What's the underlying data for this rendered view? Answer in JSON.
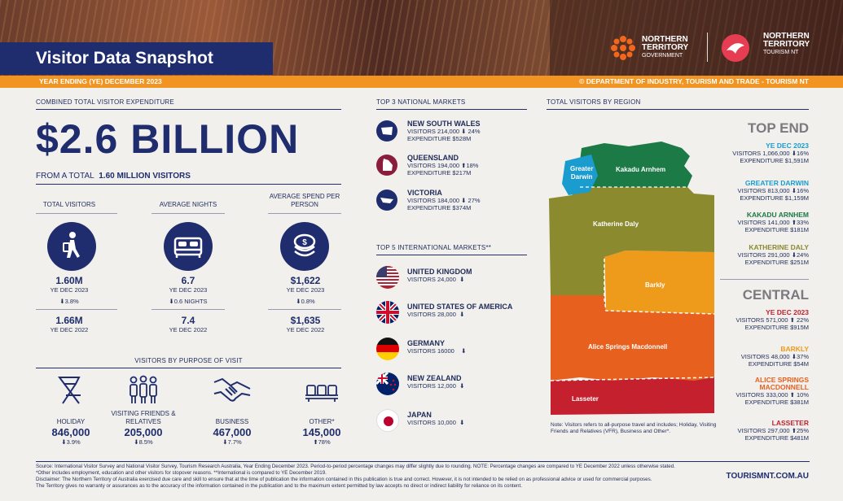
{
  "header": {
    "title": "Visitor Data Snapshot",
    "period": "YEAR ENDING (YE) DECEMBER  2023",
    "copyright": "© DEPARTMENT OF INDUSTRY, TOURISM AND TRADE - TOURISM NT",
    "logo_gov_line1": "NORTHERN",
    "logo_gov_line2": "TERRITORY",
    "logo_gov_line3": "GOVERNMENT",
    "logo_tourism_line1": "NORTHERN",
    "logo_tourism_line2": "TERRITORY",
    "logo_tourism_line3": "TOURISM NT"
  },
  "expenditure": {
    "heading": "COMBINED TOTAL VISITOR EXPENDITURE",
    "amount": "$2.6 BILLION",
    "from_prefix": "FROM A TOTAL",
    "from_value": "1.60 MILLION VISITORS"
  },
  "stats": [
    {
      "label": "TOTAL VISITORS",
      "value_2023": "1.60M",
      "period_2023": "YE DEC 2023",
      "change": "⬇3.8%",
      "value_2022": "1.66M",
      "period_2022": "YE DEC 2022"
    },
    {
      "label": "AVERAGE NIGHTS",
      "value_2023": "6.7",
      "period_2023": "YE DEC 2023",
      "change": "⬇0.6 NIGHTS",
      "value_2022": "7.4",
      "period_2022": "YE DEC 2022"
    },
    {
      "label": "AVERAGE SPEND PER PERSON",
      "value_2023": "$1,622",
      "period_2023": "YE DEC 2023",
      "change": "⬇0.8%",
      "value_2022": "$1,635",
      "period_2022": "YE DEC 2022"
    }
  ],
  "purpose": {
    "heading": "VISITORS BY PURPOSE OF VISIT",
    "items": [
      {
        "label": "HOLIDAY",
        "value": "846,000",
        "change": "⬇3.9%",
        "icon": "deckchair-icon"
      },
      {
        "label": "VISITING FRIENDS & RELATIVES",
        "value": "205,000",
        "change": "⬇8.5%",
        "icon": "family-icon"
      },
      {
        "label": "BUSINESS",
        "value": "467,000",
        "change": "⬇7.7%",
        "icon": "handshake-icon"
      },
      {
        "label": "OTHER*",
        "value": "145,000",
        "change": "⬆78%",
        "icon": "seats-icon"
      }
    ]
  },
  "national": {
    "heading": "TOP 3 NATIONAL MARKETS",
    "items": [
      {
        "name": "NEW SOUTH WALES",
        "visitors": "VISITORS  214,000",
        "change": "⬇ 24%",
        "expenditure": "EXPENDITURE $528M"
      },
      {
        "name": "QUEENSLAND",
        "visitors": "VISITORS 194,000",
        "change": "⬆18%",
        "expenditure": "EXPENDITURE $217M"
      },
      {
        "name": "VICTORIA",
        "visitors": "VISITORS 184,000",
        "change": "⬇ 27%",
        "expenditure": "EXPENDITURE $374M"
      }
    ]
  },
  "international": {
    "heading": "TOP 5 INTERNATIONAL MARKETS**",
    "items": [
      {
        "name": "UNITED KINGDOM",
        "visitors": "VISITORS 24,000",
        "change": "⬇"
      },
      {
        "name": "UNITED STATES OF AMERICA",
        "visitors": "VISITORS 28,000",
        "change": "⬇"
      },
      {
        "name": "GERMANY",
        "visitors": "VISITORS 16000",
        "change": "⬇"
      },
      {
        "name": "NEW ZEALAND",
        "visitors": "VISITORS 12,000",
        "change": "⬇"
      },
      {
        "name": "JAPAN",
        "visitors": "VISITORS 10,000",
        "change": "⬇"
      }
    ]
  },
  "regions": {
    "heading": "TOTAL VISITORS BY REGION",
    "map_labels": {
      "greater_darwin_1": "Greater",
      "greater_darwin_2": "Darwin",
      "kakadu": "Kakadu Arnhem",
      "katherine": "Katherine Daly",
      "barkly": "Barkly",
      "alice": "Alice Springs Macdonnell",
      "lasseter": "Lasseter"
    },
    "top_end": {
      "title": "TOP END",
      "period": "YE DEC 2023",
      "visitors": "VISITORS 1,066,000",
      "change": "⬇16%",
      "expenditure": "EXPENDITURE $1,591M"
    },
    "top_end_regions": [
      {
        "name": "GREATER DARWIN",
        "visitors": "VISITORS 813,000",
        "change": "⬇16%",
        "expenditure": "EXPENDITURE   $1,159M",
        "color": "#1b9ccf"
      },
      {
        "name": "KAKADU ARNHEM",
        "visitors": "VISITORS 141,000",
        "change": "⬆33%",
        "expenditure": "EXPENDITURE   $181M",
        "color": "#1b7a46"
      },
      {
        "name": "KATHERINE DALY",
        "visitors": "VISITORS 291,000",
        "change": "⬇24%",
        "expenditure": "EXPENDITURE $251M",
        "color": "#8b8a2e"
      }
    ],
    "central": {
      "title": "CENTRAL",
      "period": "YE DEC 2023",
      "visitors": "VISITORS 571,000",
      "change": "⬆ 22%",
      "expenditure": "EXPENDITURE $915M"
    },
    "central_regions": [
      {
        "name": "BARKLY",
        "visitors": "VISITORS 48,000",
        "change": "⬇37%",
        "expenditure": "EXPENDITURE $54M",
        "color": "#ee9a1a"
      },
      {
        "name": "ALICE SPRINGS MACDONNELL",
        "visitors": "VISITORS 333,000",
        "change": "⬆ 10%",
        "expenditure": "EXPENDITURE $381M",
        "color": "#e8601e"
      },
      {
        "name": "LASSETER",
        "visitors": "VISITORS 297,000",
        "change": "⬆25%",
        "expenditure": "EXPENDITURE $481M",
        "color": "#c4202e"
      }
    ],
    "note": "Note: Visitors refers to all-purpose travel and includes; Holiday, Visiting Friends and Relatives (VFR), Business and Other*."
  },
  "footer": {
    "source": "Source: International Visitor Survey and National Visitor Survey, Tourism Research Australia, Year Ending December 2023. Period-to-period percentage changes may differ slightly due to rounding. NOTE: Percentage changes are compared to YE December  2022 unless otherwise stated.",
    "other_note": "*Other includes employment, education and other visitors for stopover reasons.  **International is compared to YE December 2019.",
    "disclaimer1": "Disclaimer: The Northern Territory of Australia exercised due care and skill to ensure that at the time of publication the information contained in this publication is true and correct. However, it is not intended to be relied on as professional advice or used for commercial purposes.",
    "disclaimer2": "The Territory gives no warranty or assurances as to the accuracy of the information contained in the publication and to the maximum extent permitted by law accepts no direct or indirect liability for reliance on its content.",
    "website": "TOURISMNT.COM.AU"
  }
}
